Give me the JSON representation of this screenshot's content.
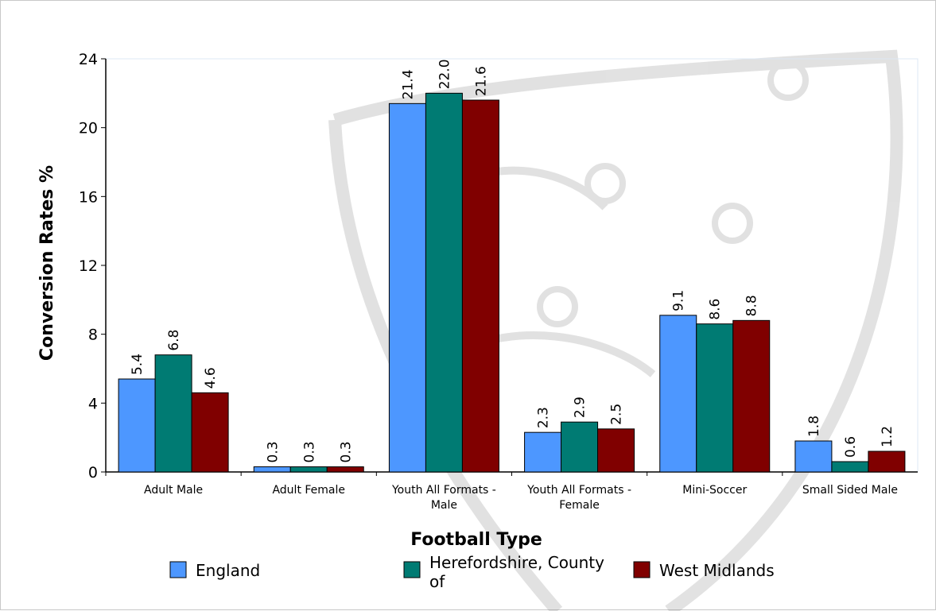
{
  "chart_data": {
    "type": "bar",
    "xlabel": "Football Type",
    "ylabel": "Conversion Rates %",
    "ylim": [
      0,
      24
    ],
    "yticks": [
      0,
      4,
      8,
      12,
      16,
      20,
      24
    ],
    "categories": [
      [
        "Adult Male"
      ],
      [
        "Adult Female"
      ],
      [
        "Youth All Formats -",
        "Male"
      ],
      [
        "Youth All Formats -",
        "Female"
      ],
      [
        "Mini-Soccer"
      ],
      [
        "Small Sided Male"
      ]
    ],
    "series": [
      {
        "name": "England",
        "color": "#4d97ff",
        "values": [
          5.4,
          0.3,
          21.4,
          2.3,
          9.1,
          1.8
        ]
      },
      {
        "name": [
          "Herefordshire, County",
          "of"
        ],
        "color": "#007b73",
        "values": [
          6.8,
          0.3,
          22.0,
          2.9,
          8.6,
          0.6
        ]
      },
      {
        "name": "West Midlands",
        "color": "#800000",
        "values": [
          4.6,
          0.3,
          21.6,
          2.5,
          8.8,
          1.2
        ]
      }
    ],
    "legend_position": "bottom",
    "grid": false
  }
}
